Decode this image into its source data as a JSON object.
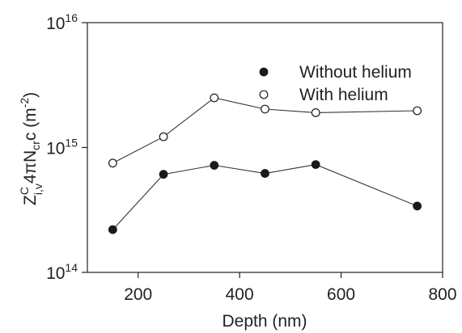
{
  "chart_data": {
    "type": "scatter",
    "x_label": "Depth (nm)",
    "y_label": {
      "base": "Z",
      "superscript": "C",
      "subscript": "i,v",
      "rest": "4πN",
      "sub_cr": "cr",
      "tail": "c (m",
      "exp": "-2",
      "close": ")"
    },
    "x_range": [
      100,
      800
    ],
    "x_ticks": [
      200,
      400,
      600,
      800
    ],
    "y_scale": "log",
    "y_range": [
      100000000000000.0,
      1e+16
    ],
    "y_ticks": [
      {
        "base": "10",
        "exp": "14",
        "value": 100000000000000.0
      },
      {
        "base": "10",
        "exp": "15",
        "value": 1000000000000000.0
      },
      {
        "base": "10",
        "exp": "16",
        "value": 1e+16
      }
    ],
    "series": [
      {
        "name": "Without helium",
        "marker": "filled-circle",
        "line": false,
        "color": "#1a1a1a",
        "x": [
          150,
          250,
          350,
          450,
          550,
          750
        ],
        "y": [
          220000000000000.0,
          610000000000000.0,
          720000000000000.0,
          620000000000000.0,
          730000000000000.0,
          340000000000000.0
        ]
      },
      {
        "name": "With helium",
        "marker": "open-circle",
        "line": true,
        "color": "#1a1a1a",
        "x": [
          150,
          250,
          350,
          450,
          550,
          750
        ],
        "y": [
          750000000000000.0,
          1220000000000000.0,
          2500000000000000.0,
          2030000000000000.0,
          1900000000000000.0,
          1970000000000000.0
        ]
      }
    ],
    "extra_lines": [
      {
        "series": "Without helium",
        "x": [
          150,
          250,
          350,
          450,
          550,
          750
        ],
        "y": [
          220000000000000.0,
          610000000000000.0,
          720000000000000.0,
          620000000000000.0,
          730000000000000.0,
          340000000000000.0
        ]
      }
    ],
    "legend": {
      "position": "top-right"
    },
    "grid": false
  }
}
